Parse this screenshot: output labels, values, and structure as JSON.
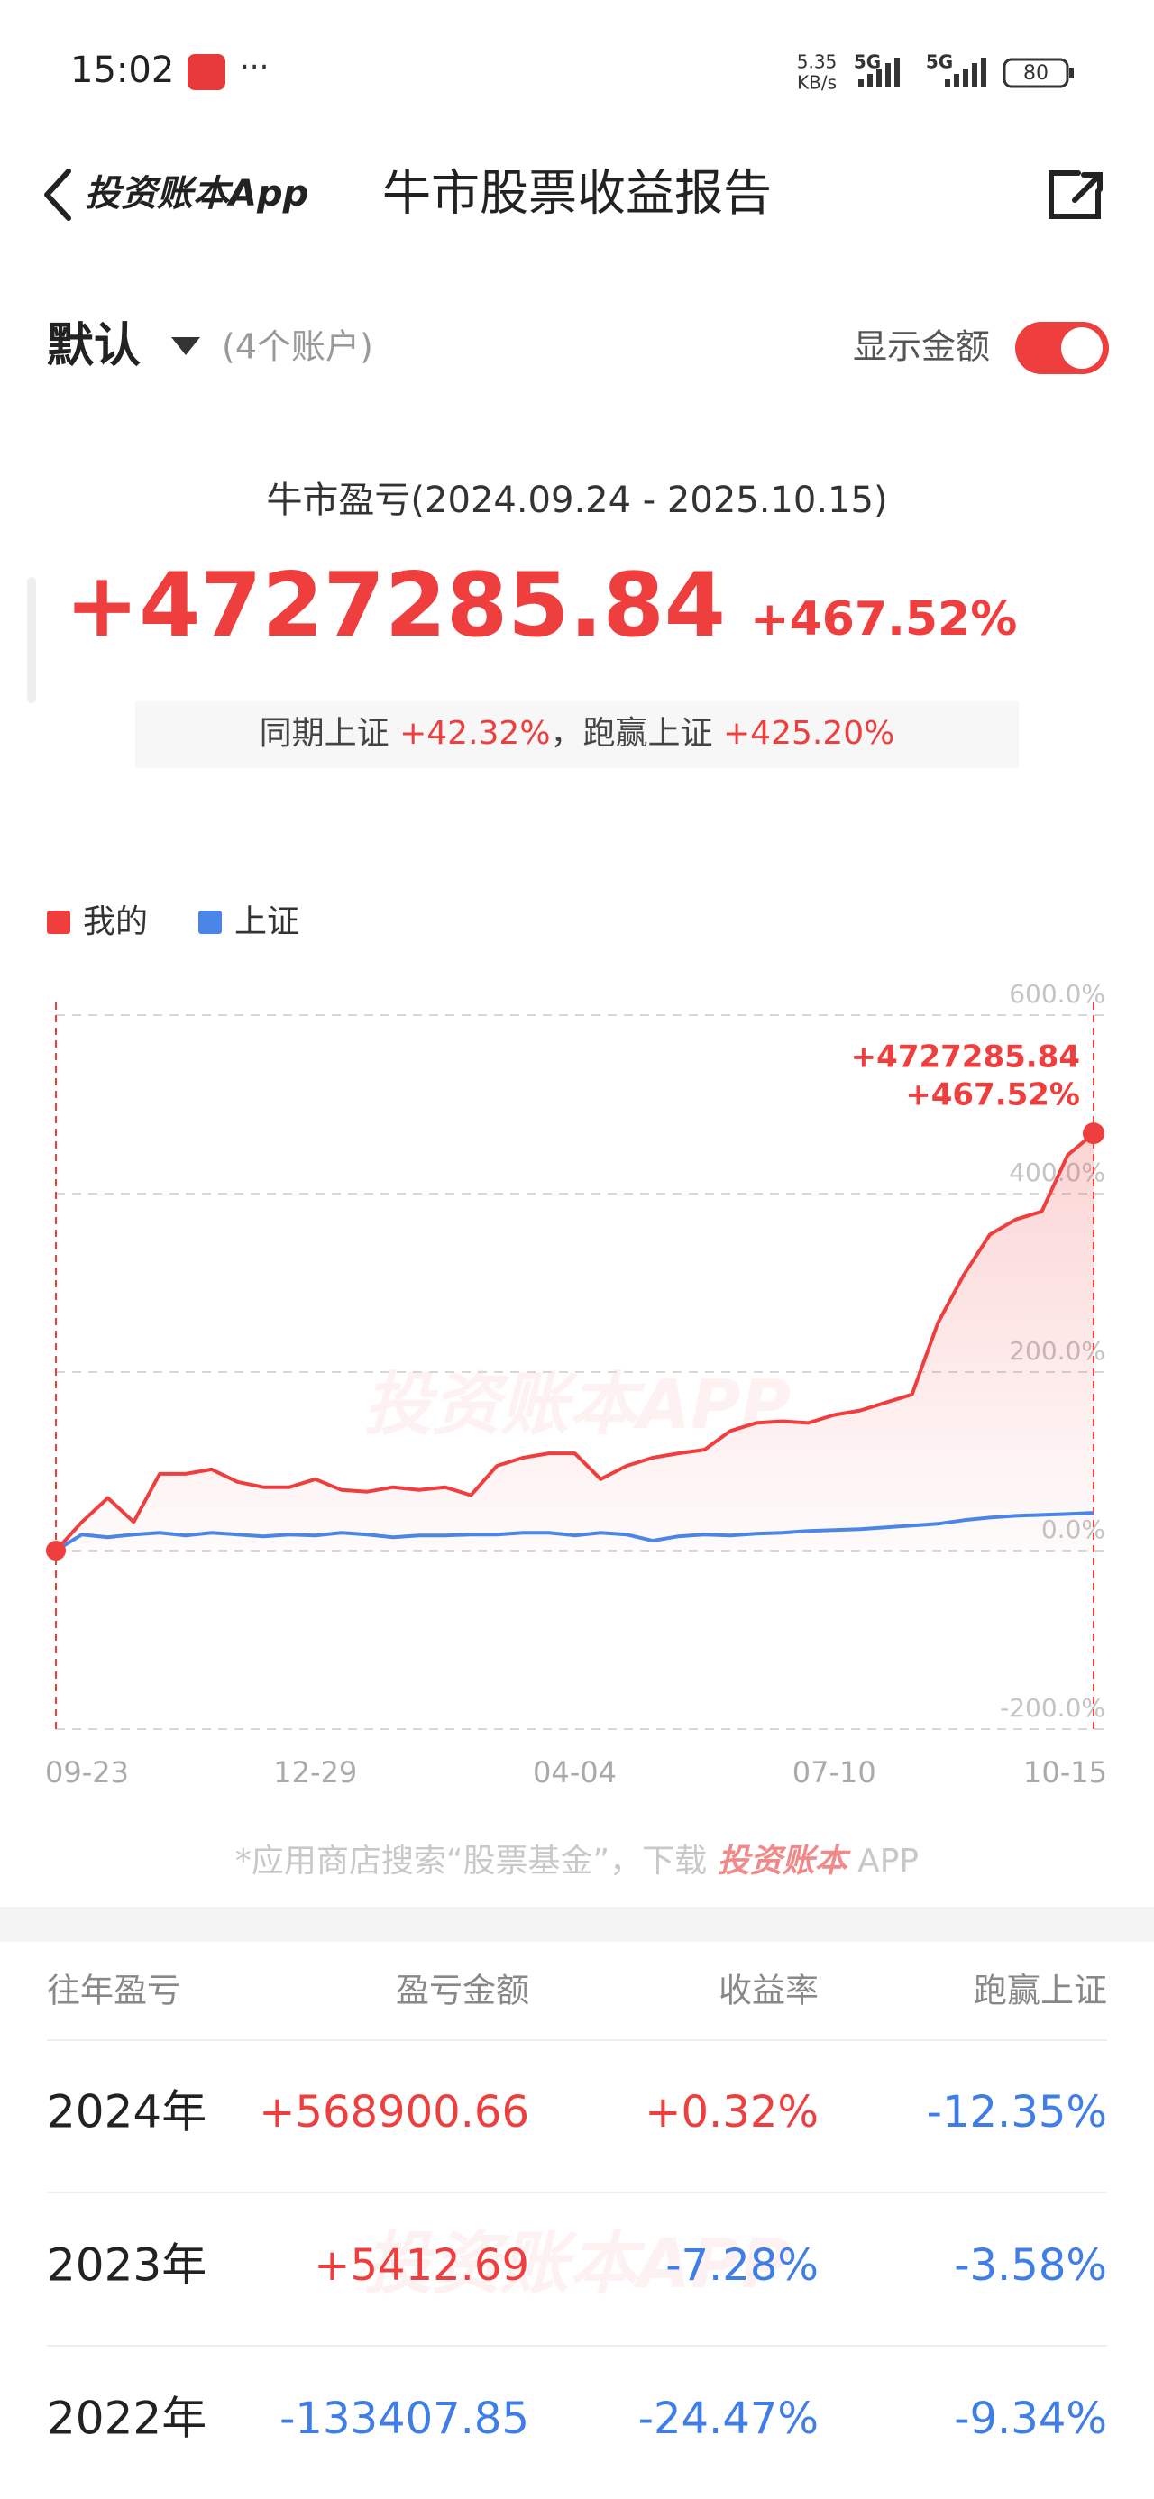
{
  "status_bar": {
    "time": "15:02",
    "speed": "5.35",
    "speed_unit": "KB/s",
    "net1": "5G",
    "net2": "5G",
    "battery": "80"
  },
  "header": {
    "brand": "投资账本App",
    "title": "牛市股票收益报告"
  },
  "account_row": {
    "name": "默认",
    "count": "(4个账户)",
    "toggle_label": "显示金额"
  },
  "summary": {
    "label": "牛市盈亏(2024.09.24 - 2025.10.15)",
    "amount": "+4727285.84",
    "rate": "+467.52%",
    "compare_label1": "同期上证",
    "compare_value1": "+42.32%",
    "separator": "，",
    "compare_label2": "跑赢上证",
    "compare_value2": "+425.20%"
  },
  "chart_data": {
    "type": "line",
    "series": [
      {
        "name": "我的",
        "color": "#ef3e3e",
        "values": [
          0,
          32,
          59,
          32,
          86,
          86,
          91,
          77,
          71,
          71,
          80,
          68,
          66,
          71,
          68,
          71,
          62,
          95,
          104,
          109,
          109,
          80,
          95,
          104,
          109,
          113,
          134,
          143,
          145,
          143,
          152,
          157,
          166,
          175,
          255,
          309,
          354,
          371,
          380,
          443,
          467.52
        ]
      },
      {
        "name": "上证",
        "color": "#4a86e8",
        "values": [
          0,
          18,
          15,
          18,
          20,
          17,
          20,
          18,
          16,
          18,
          17,
          20,
          18,
          15,
          17,
          17,
          18,
          18,
          20,
          20,
          17,
          20,
          18,
          11,
          16,
          18,
          17,
          19,
          20,
          22,
          23,
          24,
          26,
          28,
          30,
          34,
          37,
          39,
          40,
          41,
          42.32
        ]
      }
    ],
    "xlim": [
      0,
      40
    ],
    "xticks": [
      {
        "value": 0,
        "label": "09-23"
      },
      {
        "value": 10,
        "label": "12-29"
      },
      {
        "value": 20,
        "label": "04-04"
      },
      {
        "value": 30,
        "label": "07-10"
      },
      {
        "value": 40,
        "label": "10-15"
      }
    ],
    "ylim": [
      -200,
      600
    ],
    "yticks": [
      {
        "value": -200,
        "label": "-200.0%"
      },
      {
        "value": 0,
        "label": "0.0%"
      },
      {
        "value": 200,
        "label": "200.0%"
      },
      {
        "value": 400,
        "label": "400.0%"
      },
      {
        "value": 600,
        "label": "600.0%"
      }
    ],
    "grid": true,
    "annotations": [
      "+4727285.84",
      "+467.52%"
    ],
    "watermark": "投资账本APP"
  },
  "footer_note": {
    "text": "*应用商店搜索“股票基金”，下载",
    "brand": "投资账本",
    "suffix": "APP"
  },
  "table": {
    "columns": [
      "往年盈亏",
      "盈亏金额",
      "收益率",
      "跑赢上证"
    ],
    "rows": [
      [
        "2024年",
        "+568900.66",
        "+0.32%",
        "-12.35%"
      ],
      [
        "2023年",
        "+5412.69",
        "-7.28%",
        "-3.58%"
      ],
      [
        "2022年",
        "-133407.85",
        "-24.47%",
        "-9.34%"
      ]
    ],
    "watermark": "投资账本APP"
  }
}
